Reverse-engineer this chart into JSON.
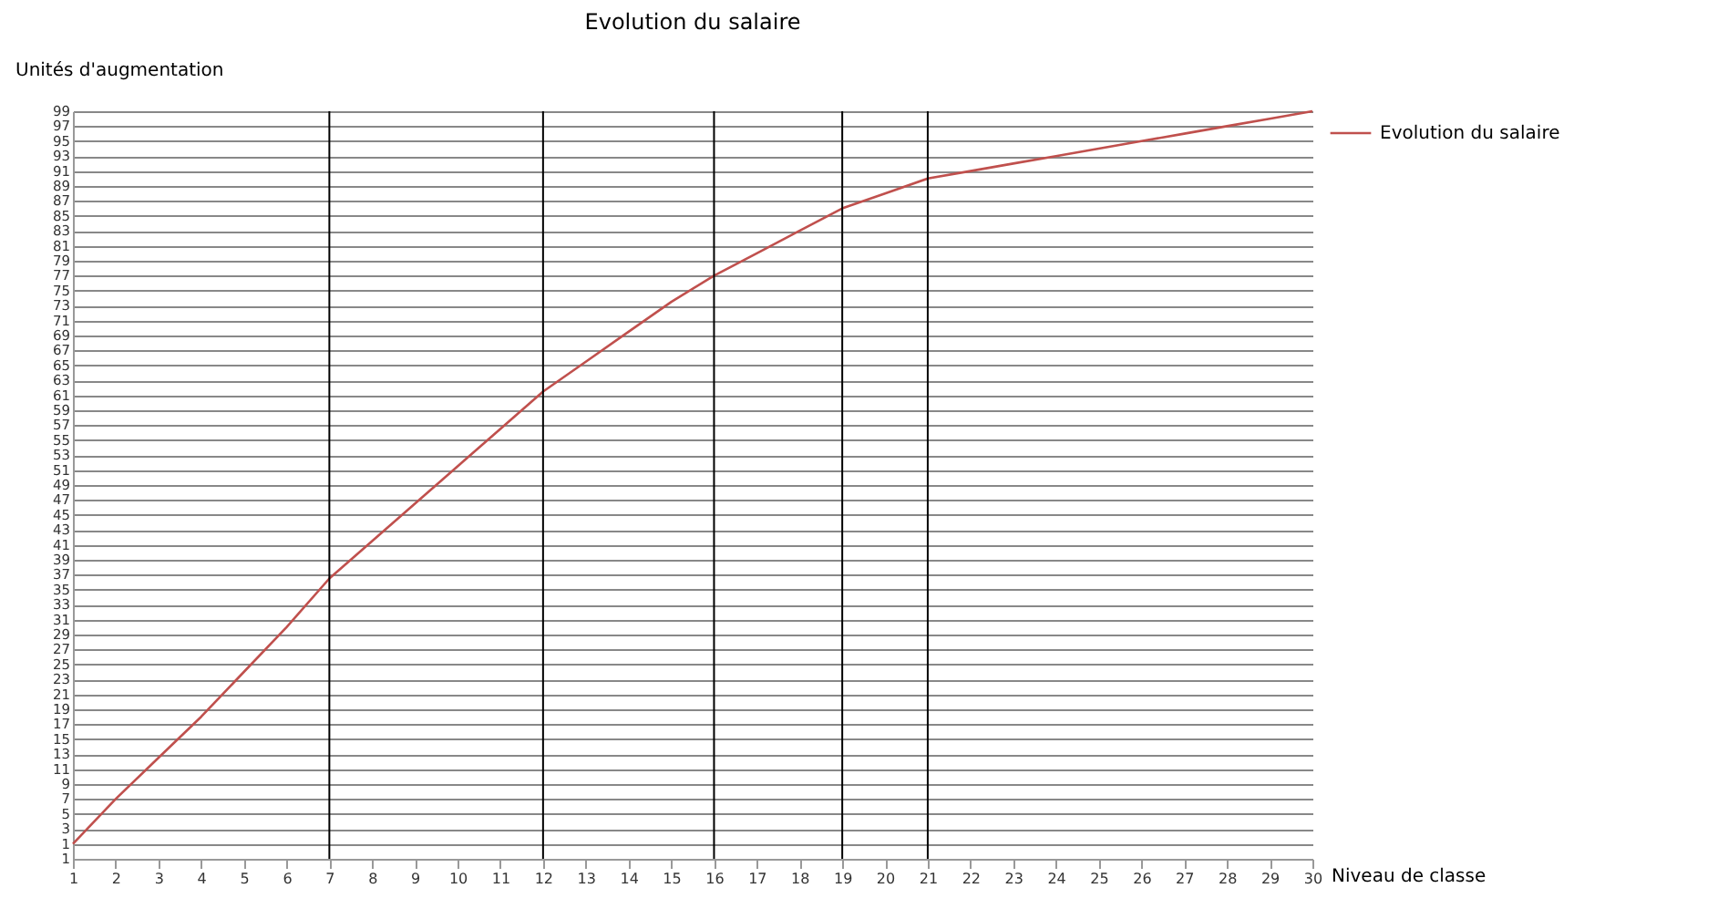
{
  "chart_data": {
    "type": "line",
    "title": "Evolution du salaire",
    "xlabel": "Niveau de classe",
    "ylabel": "Unités d'augmentation",
    "x": [
      1,
      2,
      3,
      4,
      5,
      6,
      7,
      8,
      9,
      10,
      11,
      12,
      13,
      14,
      15,
      16,
      17,
      18,
      19,
      20,
      21,
      22,
      23,
      24,
      25,
      26,
      27,
      28,
      29,
      30
    ],
    "series": [
      {
        "name": "Evolution du salaire",
        "color": "#c0504d",
        "values": [
          1,
          7,
          12.5,
          18,
          24,
          30,
          36.5,
          41.5,
          46.5,
          51.5,
          56.5,
          61.5,
          65.5,
          69.5,
          73.5,
          77,
          80,
          83,
          86,
          88,
          90,
          91,
          92,
          93,
          94,
          95,
          96,
          97,
          98,
          99
        ]
      }
    ],
    "xlim": [
      1,
      30
    ],
    "xticks": [
      1,
      2,
      3,
      4,
      5,
      6,
      7,
      8,
      9,
      10,
      11,
      12,
      13,
      14,
      15,
      16,
      17,
      18,
      19,
      20,
      21,
      22,
      23,
      24,
      25,
      26,
      27,
      28,
      29,
      30
    ],
    "ylim": [
      -1,
      99
    ],
    "yticks": [
      {
        "value": -1,
        "label": "1"
      },
      1,
      3,
      5,
      7,
      9,
      11,
      13,
      15,
      17,
      19,
      21,
      23,
      25,
      27,
      29,
      31,
      33,
      35,
      37,
      39,
      41,
      43,
      45,
      47,
      49,
      51,
      53,
      55,
      57,
      59,
      61,
      63,
      65,
      67,
      69,
      71,
      73,
      75,
      77,
      79,
      81,
      83,
      85,
      87,
      89,
      91,
      93,
      95,
      97,
      99
    ],
    "ref_lines": [
      {
        "axis": "x",
        "value": 7,
        "color": "#000000"
      },
      {
        "axis": "x",
        "value": 12,
        "color": "#000000"
      },
      {
        "axis": "x",
        "value": 16,
        "color": "#000000"
      },
      {
        "axis": "x",
        "value": 19,
        "color": "#000000"
      },
      {
        "axis": "x",
        "value": 21,
        "color": "#000000"
      }
    ],
    "grid": "y",
    "legend": "right",
    "marker": "none",
    "line_style": "solid"
  }
}
